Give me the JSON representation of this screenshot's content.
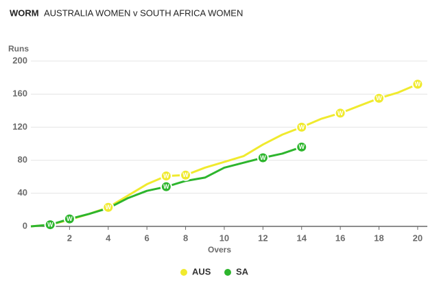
{
  "chart_data": {
    "type": "line",
    "title": "WORM",
    "subtitle": "AUSTRALIA WOMEN v SOUTH AFRICA WOMEN",
    "y_label": "Runs",
    "x_label": "Overs",
    "wicket_label": "W",
    "x": [
      0,
      1,
      2,
      3,
      4,
      5,
      6,
      7,
      8,
      9,
      10,
      11,
      12,
      13,
      14,
      15,
      16,
      17,
      18,
      19,
      20
    ],
    "series": [
      {
        "name": "AUS",
        "color": "#f0ea2e",
        "values": [
          0,
          2,
          8,
          15,
          23,
          37,
          51,
          61,
          62,
          71,
          78,
          85,
          99,
          111,
          120,
          130,
          137,
          146,
          155,
          162,
          172
        ],
        "wickets": [
          1,
          4,
          7,
          8,
          14,
          16,
          18,
          20
        ]
      },
      {
        "name": "SA",
        "color": "#2db52d",
        "values": [
          0,
          2,
          9,
          15,
          22,
          34,
          43,
          48,
          55,
          59,
          71,
          77,
          83,
          88,
          96,
          null,
          null,
          null,
          null,
          null,
          null
        ],
        "wickets": [
          1,
          2,
          7,
          12,
          14
        ]
      }
    ],
    "xlim": [
      0,
      20.5
    ],
    "ylim": [
      0,
      200
    ],
    "xticks": [
      2,
      4,
      6,
      8,
      10,
      12,
      14,
      16,
      18,
      20
    ],
    "yticks": [
      0,
      40,
      80,
      120,
      160,
      200
    ],
    "grid": true,
    "legend": "bottom"
  }
}
